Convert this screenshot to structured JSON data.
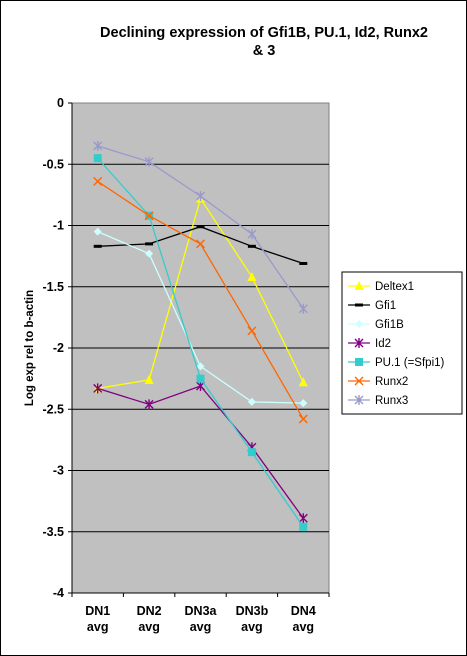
{
  "chart_data": {
    "type": "line",
    "title": [
      "Declining expression of Gfi1B, PU.1, Id2, Runx2",
      "& 3"
    ],
    "xlabel": "",
    "ylabel": "Log exp rel to b-actin",
    "ylim": [
      -4,
      0
    ],
    "yticks": [
      0,
      -0.5,
      -1,
      -1.5,
      -2,
      -2.5,
      -3,
      -3.5,
      -4
    ],
    "categories": [
      [
        "DN1",
        "avg"
      ],
      [
        "DN2",
        "avg"
      ],
      [
        "DN3a",
        "avg"
      ],
      [
        "DN3b",
        "avg"
      ],
      [
        "DN4",
        "avg"
      ]
    ],
    "grid": "horizontal",
    "legend_position": "right",
    "plot_background": "#c0c0c0",
    "series": [
      {
        "name": "Deltex1",
        "color": "#ffff00",
        "marker": "triangle",
        "values": [
          -2.33,
          -2.26,
          -0.78,
          -1.42,
          -2.28
        ]
      },
      {
        "name": "Gfi1",
        "color": "#000000",
        "marker": "dash",
        "values": [
          -1.17,
          -1.15,
          -1.01,
          -1.17,
          -1.31
        ]
      },
      {
        "name": "Gfi1B",
        "color": "#ccffff",
        "marker": "diamond",
        "values": [
          -1.05,
          -1.23,
          -2.15,
          -2.44,
          -2.45
        ]
      },
      {
        "name": "Id2",
        "color": "#800080",
        "marker": "star",
        "values": [
          -2.33,
          -2.46,
          -2.31,
          -2.81,
          -3.39
        ]
      },
      {
        "name": "PU.1 (=Sfpi1)",
        "color": "#33cccc",
        "marker": "square",
        "values": [
          -0.45,
          -0.92,
          -2.25,
          -2.85,
          -3.46
        ]
      },
      {
        "name": "Runx2",
        "color": "#ff6600",
        "marker": "x",
        "values": [
          -0.64,
          -0.92,
          -1.15,
          -1.86,
          -2.58
        ]
      },
      {
        "name": "Runx3",
        "color": "#9999cc",
        "marker": "star",
        "values": [
          -0.35,
          -0.48,
          -0.76,
          -1.07,
          -1.68
        ]
      }
    ]
  }
}
